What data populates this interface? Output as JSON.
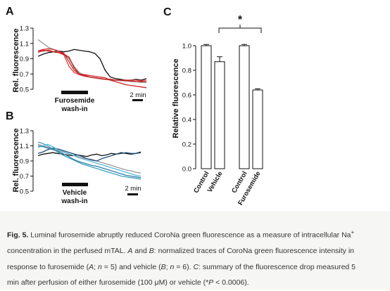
{
  "panel_A": {
    "letter": "A",
    "ylabel": "Rel. fluorescence",
    "yticks": [
      "1.3",
      "1.1",
      "0.9",
      "0.7",
      "0.5"
    ],
    "bar_label_line1": "Furosemide",
    "bar_label_line2": "wash-in",
    "scale_label": "2 min"
  },
  "panel_B": {
    "letter": "B",
    "ylabel": "Rel. fluorescence",
    "yticks": [
      "1.3",
      "1.1",
      "0.9",
      "0.7",
      "0.5"
    ],
    "bar_label_line1": "Vehicle",
    "bar_label_line2": "wash-in",
    "scale_label": "2 min"
  },
  "panel_C": {
    "letter": "C",
    "significance": "*",
    "labels": [
      "Control",
      "Vehicle",
      "Control",
      "Furosemide"
    ]
  },
  "chart_data": [
    {
      "type": "line",
      "panel": "A",
      "ylabel": "Rel. fluorescence",
      "ylim": [
        0.5,
        1.3
      ],
      "yticks": [
        1.3,
        1.1,
        0.9,
        0.7,
        0.5
      ],
      "x": [
        0,
        0.5,
        1,
        1.5,
        2,
        2.5,
        3,
        3.5,
        4,
        4.5,
        5,
        5.5,
        6,
        6.5,
        7,
        7.5,
        8,
        8.5,
        9,
        9.5,
        10,
        10.5
      ],
      "series": [
        {
          "color": "#111111",
          "values": [
            0.93,
            0.96,
            0.98,
            0.99,
            1.0,
            0.99,
            1.0,
            1.02,
            1.01,
            1.0,
            0.99,
            0.97,
            0.9,
            0.75,
            0.66,
            0.64,
            0.63,
            0.62,
            0.62,
            0.63,
            0.62,
            0.64
          ]
        },
        {
          "color": "#999999",
          "values": [
            1.15,
            1.1,
            1.05,
            1.02,
            0.99,
            0.96,
            0.9,
            0.8,
            0.72,
            0.68,
            0.66,
            0.65,
            0.64,
            0.63,
            0.62,
            0.62,
            0.61,
            0.61,
            0.6,
            0.6,
            0.59,
            0.59
          ]
        },
        {
          "color": "#cc2222",
          "values": [
            1.0,
            1.02,
            1.03,
            1.02,
            1.0,
            0.97,
            0.86,
            0.75,
            0.7,
            0.69,
            0.68,
            0.67,
            0.66,
            0.65,
            0.62,
            0.6,
            0.58,
            0.56,
            0.55,
            0.54,
            0.53,
            0.52
          ]
        },
        {
          "color": "#dd4444",
          "values": [
            0.98,
            1.01,
            1.0,
            0.99,
            0.98,
            0.95,
            0.8,
            0.72,
            0.69,
            0.67,
            0.66,
            0.65,
            0.64,
            0.63,
            0.63,
            0.62,
            0.62,
            0.62,
            0.62,
            0.62,
            0.61,
            0.62
          ]
        },
        {
          "color": "#bb1111",
          "values": [
            1.0,
            1.0,
            1.01,
            0.99,
            0.98,
            0.96,
            0.92,
            0.78,
            0.7,
            0.68,
            0.66,
            0.65,
            0.64,
            0.63,
            0.63,
            0.62,
            0.62,
            0.61,
            0.61,
            0.6,
            0.6,
            0.6
          ]
        }
      ]
    },
    {
      "type": "line",
      "panel": "B",
      "ylabel": "Rel. fluorescence",
      "ylim": [
        0.5,
        1.3
      ],
      "yticks": [
        1.3,
        1.1,
        0.9,
        0.7,
        0.5
      ],
      "x": [
        0,
        0.5,
        1,
        1.5,
        2,
        2.5,
        3,
        3.5,
        4,
        4.5,
        5,
        5.5,
        6,
        6.5,
        7,
        7.5,
        8,
        8.5,
        9,
        9.5,
        10,
        10.5
      ],
      "series": [
        {
          "color": "#111111",
          "values": [
            0.97,
            0.99,
            1.0,
            1.01,
            1.0,
            0.99,
            0.98,
            0.97,
            0.98,
            0.97,
            0.96,
            0.98,
            0.99,
            0.97,
            0.98,
            1.0,
            0.99,
            1.01,
            1.0,
            0.99,
            1.0,
            1.02
          ]
        },
        {
          "color": "#999999",
          "values": [
            1.12,
            1.1,
            1.08,
            1.06,
            1.04,
            1.02,
            1.0,
            0.98,
            0.96,
            0.94,
            0.93,
            0.92,
            0.9,
            0.88,
            0.86,
            0.84,
            0.82,
            0.8,
            0.78,
            0.77,
            0.75,
            0.74
          ]
        },
        {
          "color": "#1f4e79",
          "values": [
            1.0,
            1.02,
            1.05,
            1.07,
            1.06,
            1.04,
            1.02,
            1.0,
            0.98,
            0.96,
            0.93,
            0.91,
            0.9,
            0.93,
            0.95,
            0.97,
            0.99,
            1.0,
            1.01,
            1.0,
            1.0,
            1.01
          ]
        },
        {
          "color": "#3f9fbf",
          "values": [
            1.15,
            1.13,
            1.1,
            1.06,
            1.02,
            0.98,
            0.95,
            0.92,
            0.89,
            0.86,
            0.84,
            0.82,
            0.8,
            0.78,
            0.76,
            0.74,
            0.72,
            0.7,
            0.69,
            0.68,
            0.67,
            0.66
          ]
        },
        {
          "color": "#5bb8d8",
          "values": [
            1.08,
            1.1,
            1.12,
            1.09,
            1.05,
            1.03,
            1.0,
            0.98,
            0.95,
            0.93,
            0.91,
            0.89,
            0.87,
            0.85,
            0.83,
            0.81,
            0.79,
            0.77,
            0.75,
            0.73,
            0.71,
            0.7
          ]
        },
        {
          "color": "#2b7fa8",
          "values": [
            1.1,
            1.09,
            1.07,
            1.05,
            1.03,
            1.0,
            0.97,
            0.93,
            0.9,
            0.88,
            0.86,
            0.84,
            0.83,
            0.81,
            0.79,
            0.77,
            0.75,
            0.73,
            0.71,
            0.7,
            0.69,
            0.68
          ]
        }
      ]
    },
    {
      "type": "bar",
      "panel": "C",
      "ylabel": "Relative fluorescence",
      "ylim": [
        0,
        1.2
      ],
      "yticks": [
        "0.0",
        "0.2",
        "0.4",
        "0.6",
        "0.8",
        "1.0"
      ],
      "categories": [
        "Control",
        "Vehicle",
        "Control",
        "Furosemide"
      ],
      "values": [
        1.0,
        0.87,
        1.0,
        0.64
      ],
      "errors": [
        0.01,
        0.04,
        0.01,
        0.01
      ]
    }
  ],
  "caption": {
    "label": "Fig. 5.",
    "line1": " Luminal furosemide abruptly reduced CoroNa green fluorescence as a measure of intracellular Na",
    "line1_sup": "+",
    "line2": "concentration in the perfused mTAL. ",
    "line2_A": "A",
    "line2_and": " and ",
    "line2_B": "B",
    "line2_rest": ": normalized traces of CoroNa green fluorescence intensity in",
    "line3_a": "response to furosemide (",
    "line3_A": "A",
    "line3_semi1": "; ",
    "line3_n1": "n",
    "line3_b": " = 5) and vehicle (",
    "line3_B": "B",
    "line3_semi2": "; ",
    "line3_n2": "n",
    "line3_c": " = 6). ",
    "line3_C": "C",
    "line3_d": ": summary of the fluorescence drop measured 5",
    "line4_a": "min after perfusion of either furosemide (100 μM) or vehicle (*",
    "line4_P": "P",
    "line4_b": " < 0.0006)."
  }
}
